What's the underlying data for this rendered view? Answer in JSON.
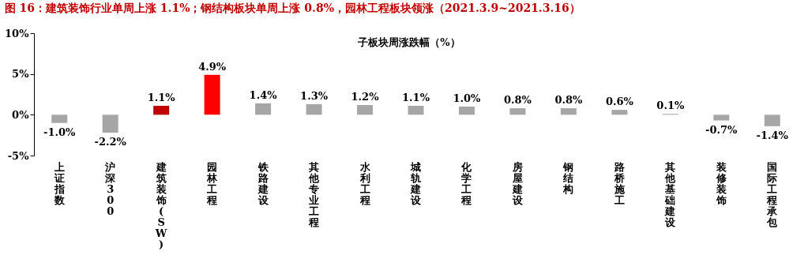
{
  "chart_data": {
    "type": "bar",
    "title": "图 16：建筑装饰行业单周上涨 1.1%；钢结构板块单周上涨 0.8%，园林工程板块领涨（2021.3.9~2021.3.16）",
    "subtitle": "子板块周涨跌幅（%）",
    "categories": [
      "上证指数",
      "沪深300",
      "建筑装饰(SW)",
      "园林工程",
      "铁路建设",
      "其他专业工程",
      "水利工程",
      "城轨建设",
      "化学工程",
      "房屋建设",
      "钢结构",
      "路桥施工",
      "其他基础建设",
      "装修装饰",
      "国际工程承包"
    ],
    "values": [
      -1.0,
      -2.2,
      1.1,
      4.9,
      1.4,
      1.3,
      1.2,
      1.1,
      1.0,
      0.8,
      0.8,
      0.6,
      0.1,
      -0.7,
      -1.4
    ],
    "value_labels": [
      "-1.0%",
      "-2.2%",
      "1.1%",
      "4.9%",
      "1.4%",
      "1.3%",
      "1.2%",
      "1.1%",
      "1.0%",
      "0.8%",
      "0.8%",
      "0.6%",
      "0.1%",
      "-0.7%",
      "-1.4%"
    ],
    "colors": [
      "#a6a6a6",
      "#a6a6a6",
      "#c00000",
      "#ff0000",
      "#a6a6a6",
      "#a6a6a6",
      "#a6a6a6",
      "#a6a6a6",
      "#a6a6a6",
      "#a6a6a6",
      "#a6a6a6",
      "#a6a6a6",
      "#a6a6a6",
      "#a6a6a6",
      "#a6a6a6"
    ],
    "ylim": [
      -5,
      10
    ],
    "yticks": [
      {
        "value": -5,
        "label": "-5%"
      },
      {
        "value": 0,
        "label": "0%"
      },
      {
        "value": 5,
        "label": "5%"
      },
      {
        "value": 10,
        "label": "10%"
      }
    ],
    "grid": false
  }
}
